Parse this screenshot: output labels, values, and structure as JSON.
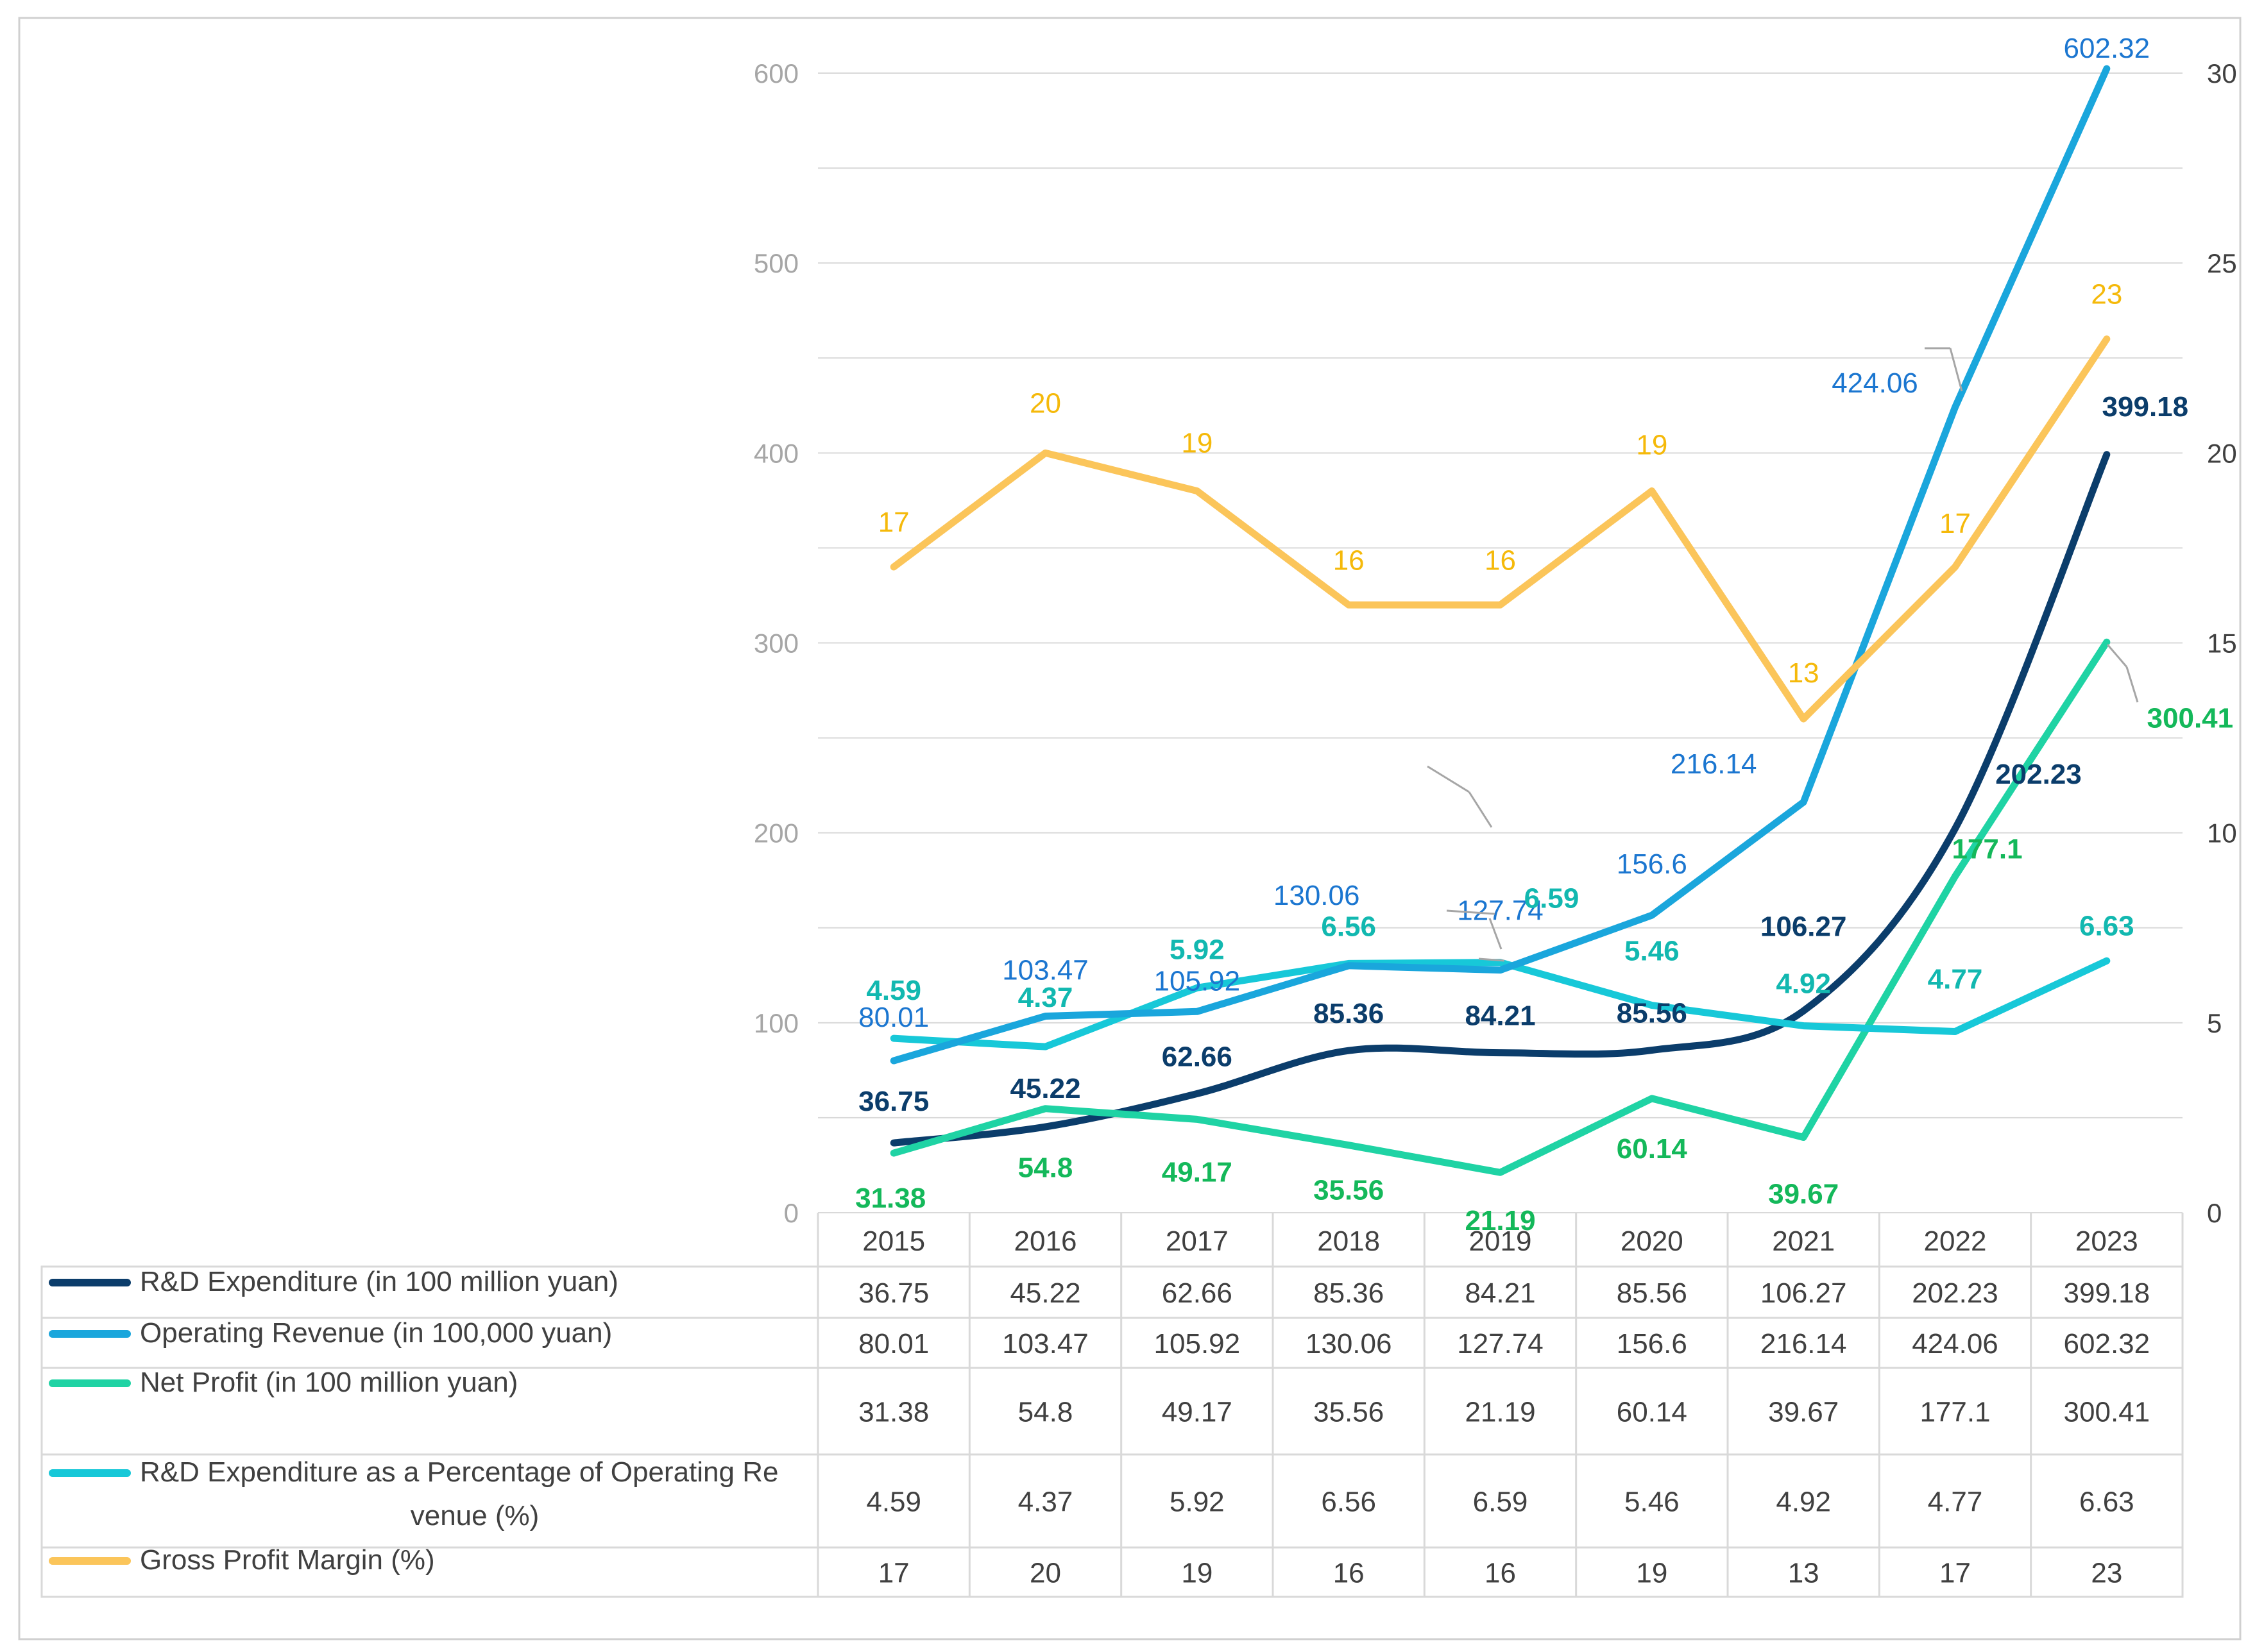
{
  "chart_data": {
    "type": "line",
    "title": "",
    "xlabel": "",
    "categories": [
      "2015",
      "2016",
      "2017",
      "2018",
      "2019",
      "2020",
      "2021",
      "2022",
      "2023"
    ],
    "y_left": {
      "min": 0,
      "max": 600,
      "ticks": [
        "0",
        "100",
        "200",
        "300",
        "400",
        "500",
        "600"
      ]
    },
    "y_right": {
      "min": 0,
      "max": 30,
      "ticks": [
        "0",
        "5",
        "10",
        "15",
        "20",
        "25",
        "30"
      ]
    },
    "grid": true,
    "legend": "table-below",
    "series": [
      {
        "name": "R&D Expenditure (in 100 million yuan)",
        "axis": "left",
        "color": "#0b3d6b",
        "values": [
          36.75,
          45.22,
          62.66,
          85.36,
          84.21,
          85.56,
          106.27,
          202.23,
          399.18
        ],
        "labels": [
          "36.75",
          "45.22",
          "62.66",
          "85.36",
          "84.21",
          "85.56",
          "106.27",
          "202.23",
          "399.18"
        ],
        "bold": true,
        "smooth": true
      },
      {
        "name": "Operating Revenue (in 100,000 yuan)",
        "axis": "left",
        "color": "#1aa6dc",
        "label_color": "#1b76d0",
        "values": [
          80.01,
          103.47,
          105.92,
          130.06,
          127.74,
          156.6,
          216.14,
          424.06,
          602.32
        ],
        "labels": [
          "80.01",
          "103.47",
          "105.92",
          "130.06",
          "127.74",
          "156.6",
          "216.14",
          "424.06",
          "602.32"
        ],
        "bold": false,
        "smooth": false
      },
      {
        "name": "Net Profit (in 100 million yuan)",
        "axis": "left",
        "color": "#1fd3a4",
        "label_color": "#14b85a",
        "values": [
          31.38,
          54.8,
          49.17,
          35.56,
          21.19,
          60.14,
          39.67,
          177.1,
          300.41
        ],
        "labels": [
          "31.38",
          "54.8",
          "49.17",
          "35.56",
          "21.19",
          "60.14",
          "39.67",
          "177.1",
          "300.41"
        ],
        "bold": true,
        "smooth": false
      },
      {
        "name": "R&D Expenditure as a Percentage of Operating Re venue (%)",
        "name_lines": [
          "R&D Expenditure as a Percentage of Operating Re",
          "venue (%)"
        ],
        "axis": "right",
        "color": "#17c8d8",
        "label_color": "#12b8b0",
        "values": [
          4.59,
          4.37,
          5.92,
          6.56,
          6.59,
          5.46,
          4.92,
          4.77,
          6.63
        ],
        "labels": [
          "4.59",
          "4.37",
          "5.92",
          "6.56",
          "6.59",
          "5.46",
          "4.92",
          "4.77",
          "6.63"
        ],
        "bold": true,
        "smooth": false
      },
      {
        "name": "Gross Profit Margin (%)",
        "axis": "right",
        "color": "#fbc55a",
        "label_color": "#f5b90a",
        "values": [
          17,
          20,
          19,
          16,
          16,
          19,
          13,
          17,
          23
        ],
        "labels": [
          "17",
          "20",
          "19",
          "16",
          "16",
          "19",
          "13",
          "17",
          "23"
        ],
        "bold": false,
        "smooth": false
      }
    ]
  }
}
